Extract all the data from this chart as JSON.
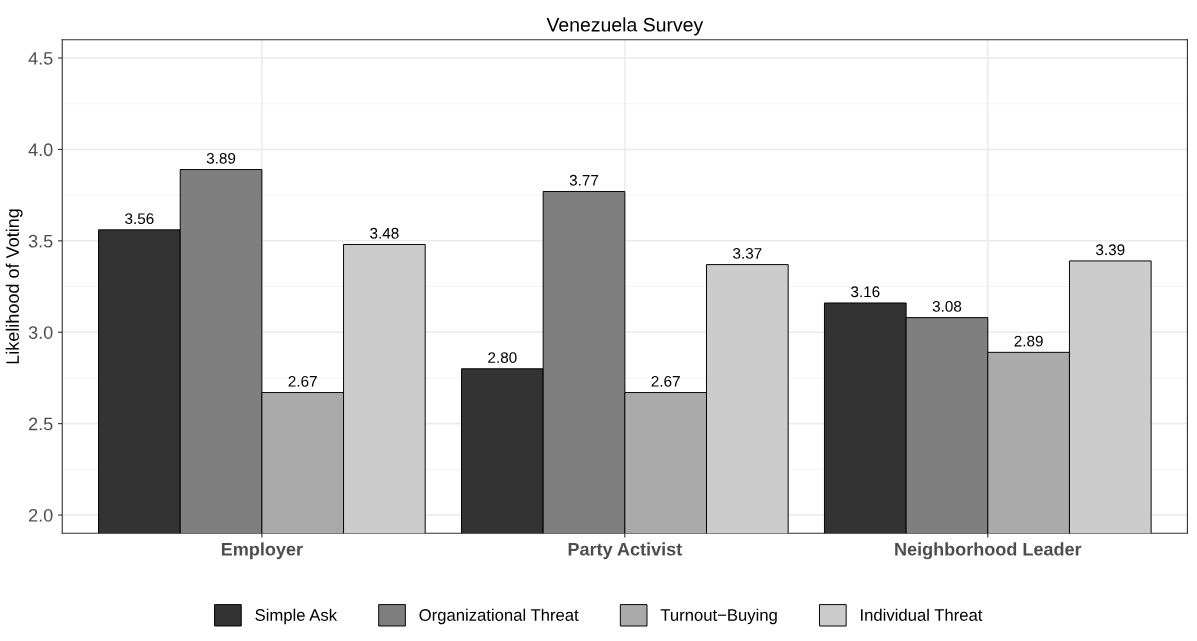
{
  "chart_data": {
    "type": "bar",
    "title": "Venezuela Survey",
    "ylabel": "Likelihood of Voting",
    "categories": [
      "Employer",
      "Party Activist",
      "Neighborhood Leader"
    ],
    "series": [
      {
        "name": "Simple Ask",
        "color": "#333333",
        "values": [
          3.56,
          2.8,
          3.16
        ],
        "value_labels": [
          "3.56",
          "2.80",
          "3.16"
        ]
      },
      {
        "name": "Organizational Threat",
        "color": "#7f7f7f",
        "values": [
          3.89,
          3.77,
          3.08
        ],
        "value_labels": [
          "3.89",
          "3.77",
          "3.08"
        ]
      },
      {
        "name": "Turnout−Buying",
        "color": "#aaaaaa",
        "values": [
          2.67,
          2.67,
          2.89
        ],
        "value_labels": [
          "2.67",
          "2.67",
          "2.89"
        ]
      },
      {
        "name": "Individual Threat",
        "color": "#cccccc",
        "values": [
          3.48,
          3.37,
          3.39
        ],
        "value_labels": [
          "3.48",
          "3.37",
          "3.39"
        ]
      }
    ],
    "ylim": [
      1.9,
      4.6
    ],
    "yticks": [
      {
        "value": 2,
        "label": "2.0"
      },
      2.5,
      {
        "value": 3,
        "label": "3.0"
      },
      3.5,
      {
        "value": 4,
        "label": "4.0"
      },
      4.5
    ],
    "grid": true,
    "legend": "bottom"
  }
}
